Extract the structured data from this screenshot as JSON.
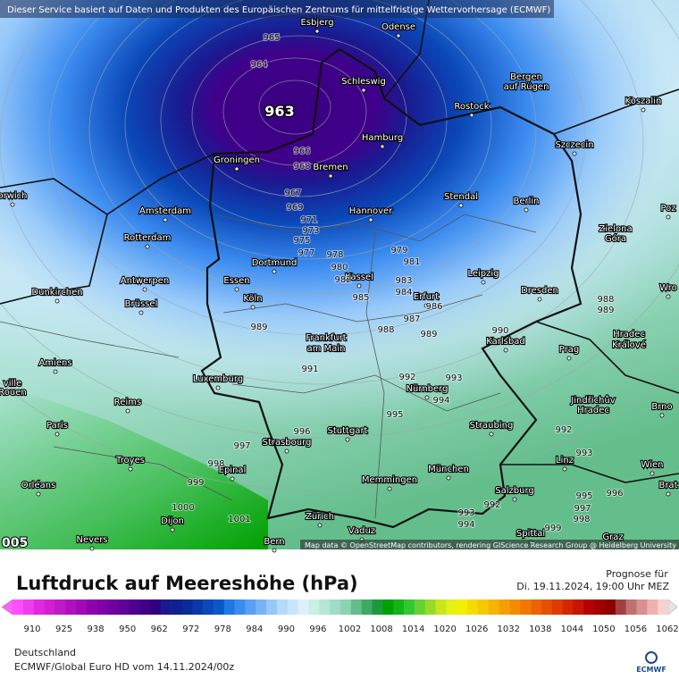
{
  "header_note": "Dieser Service basiert auf Daten und Produkten des Europäischen Zentrums für mittelfristige Wettervorhersage (ECMWF)",
  "map": {
    "cities": [
      "Esbjerg",
      "Odense",
      "Schleswig",
      "Bergen",
      "auf Rügen",
      "Rostock",
      "Koszalin",
      "Hamburg",
      "Szczecin",
      "Groningen",
      "Bremen",
      "orwich",
      "Amsterdam",
      "Hannover",
      "Stendal",
      "Berlin",
      "Poz",
      "Zielona",
      "Góra",
      "Rotterdam",
      "Dortmund",
      "Antwerpen",
      "Essen",
      "Kassel",
      "Leipzig",
      "Wro",
      "Dunkirchen",
      "Dresden",
      "Köln",
      "Brüssel",
      "Erfurt",
      "Hradec",
      "Králové",
      "Frankfurt",
      "am Main",
      "Karlsbad",
      "Prag",
      "Amiens",
      "ville",
      "Rouen",
      "Luxemburg",
      "Nürnberg",
      "Jindřichův",
      "Hradec",
      "Brno",
      "Reims",
      "Paris",
      "Stuttgart",
      "Straubing",
      "Strasbourg",
      "Troyes",
      "Epinal",
      "München",
      "Wien",
      "Linz",
      "Orléans",
      "Memmingen",
      "Brat",
      "Salzburg",
      "Zürich",
      "Dijon",
      "Vaduz",
      "Nevers",
      "Bern",
      "Spittal",
      "Graz"
    ],
    "isobar_labels": [
      965,
      964,
      963,
      966,
      968,
      967,
      969,
      971,
      973,
      975,
      977,
      978,
      979,
      980,
      981,
      982,
      983,
      984,
      985,
      986,
      987,
      988,
      989,
      989,
      990,
      991,
      992,
      993,
      994,
      995,
      996,
      997,
      998,
      999,
      1000,
      1001,
      988,
      989,
      992,
      993,
      995,
      996,
      997,
      998,
      992,
      993,
      994,
      999
    ],
    "corner_label": "005",
    "attribution": "Map data © OpenStreetMap contributors, rendering GIScience Research Group @ Heidelberg University"
  },
  "legend": {
    "title": "Luftdruck auf Meereshöhe (hPa)",
    "forecast_label": "Prognose für",
    "forecast_time": "Di. 19.11.2024, 19:00 Uhr MEZ",
    "scale_ticks": [
      910,
      925,
      938,
      950,
      962,
      972,
      978,
      984,
      990,
      996,
      1002,
      1008,
      1014,
      1020,
      1026,
      1032,
      1038,
      1044,
      1050,
      1056,
      1062
    ],
    "under_color": "#ff60ff",
    "over_color": "#e4e4e4",
    "colors": [
      "#ff50ff",
      "#f03cf0",
      "#e028e0",
      "#d020d0",
      "#c018c8",
      "#b010c0",
      "#a008b8",
      "#9000b0",
      "#8000a8",
      "#7000a0",
      "#600098",
      "#500090",
      "#40008a",
      "#300080",
      "#1a1a90",
      "#102090",
      "#0a2a9a",
      "#0a38a8",
      "#0a48b8",
      "#0a58c8",
      "#1e78e6",
      "#3c8cf0",
      "#5aa0f0",
      "#78b4f5",
      "#96c8fa",
      "#b4dcfa",
      "#c8e6fa",
      "#dcf0fa",
      "#c8f0e6",
      "#b4e6d2",
      "#a0dcc8",
      "#8cd2b4",
      "#64be8c",
      "#3caa64",
      "#1e9a3c",
      "#00a000",
      "#14b414",
      "#32c832",
      "#64d232",
      "#96dc28",
      "#c8e61e",
      "#e6f014",
      "#f0f000",
      "#f5dc00",
      "#f5c800",
      "#f5b400",
      "#f5a000",
      "#f58c00",
      "#f07800",
      "#eb6400",
      "#e65000",
      "#dc3c00",
      "#d22800",
      "#c81400",
      "#b40000",
      "#a00000",
      "#8c0000",
      "#a04040",
      "#c07070",
      "#d89090",
      "#f0b0b0",
      "#f8d0d0"
    ],
    "region": "Deutschland",
    "model": "ECMWF/Global Euro HD vom  14.11.2024/00z",
    "logo": "ECMWF"
  }
}
